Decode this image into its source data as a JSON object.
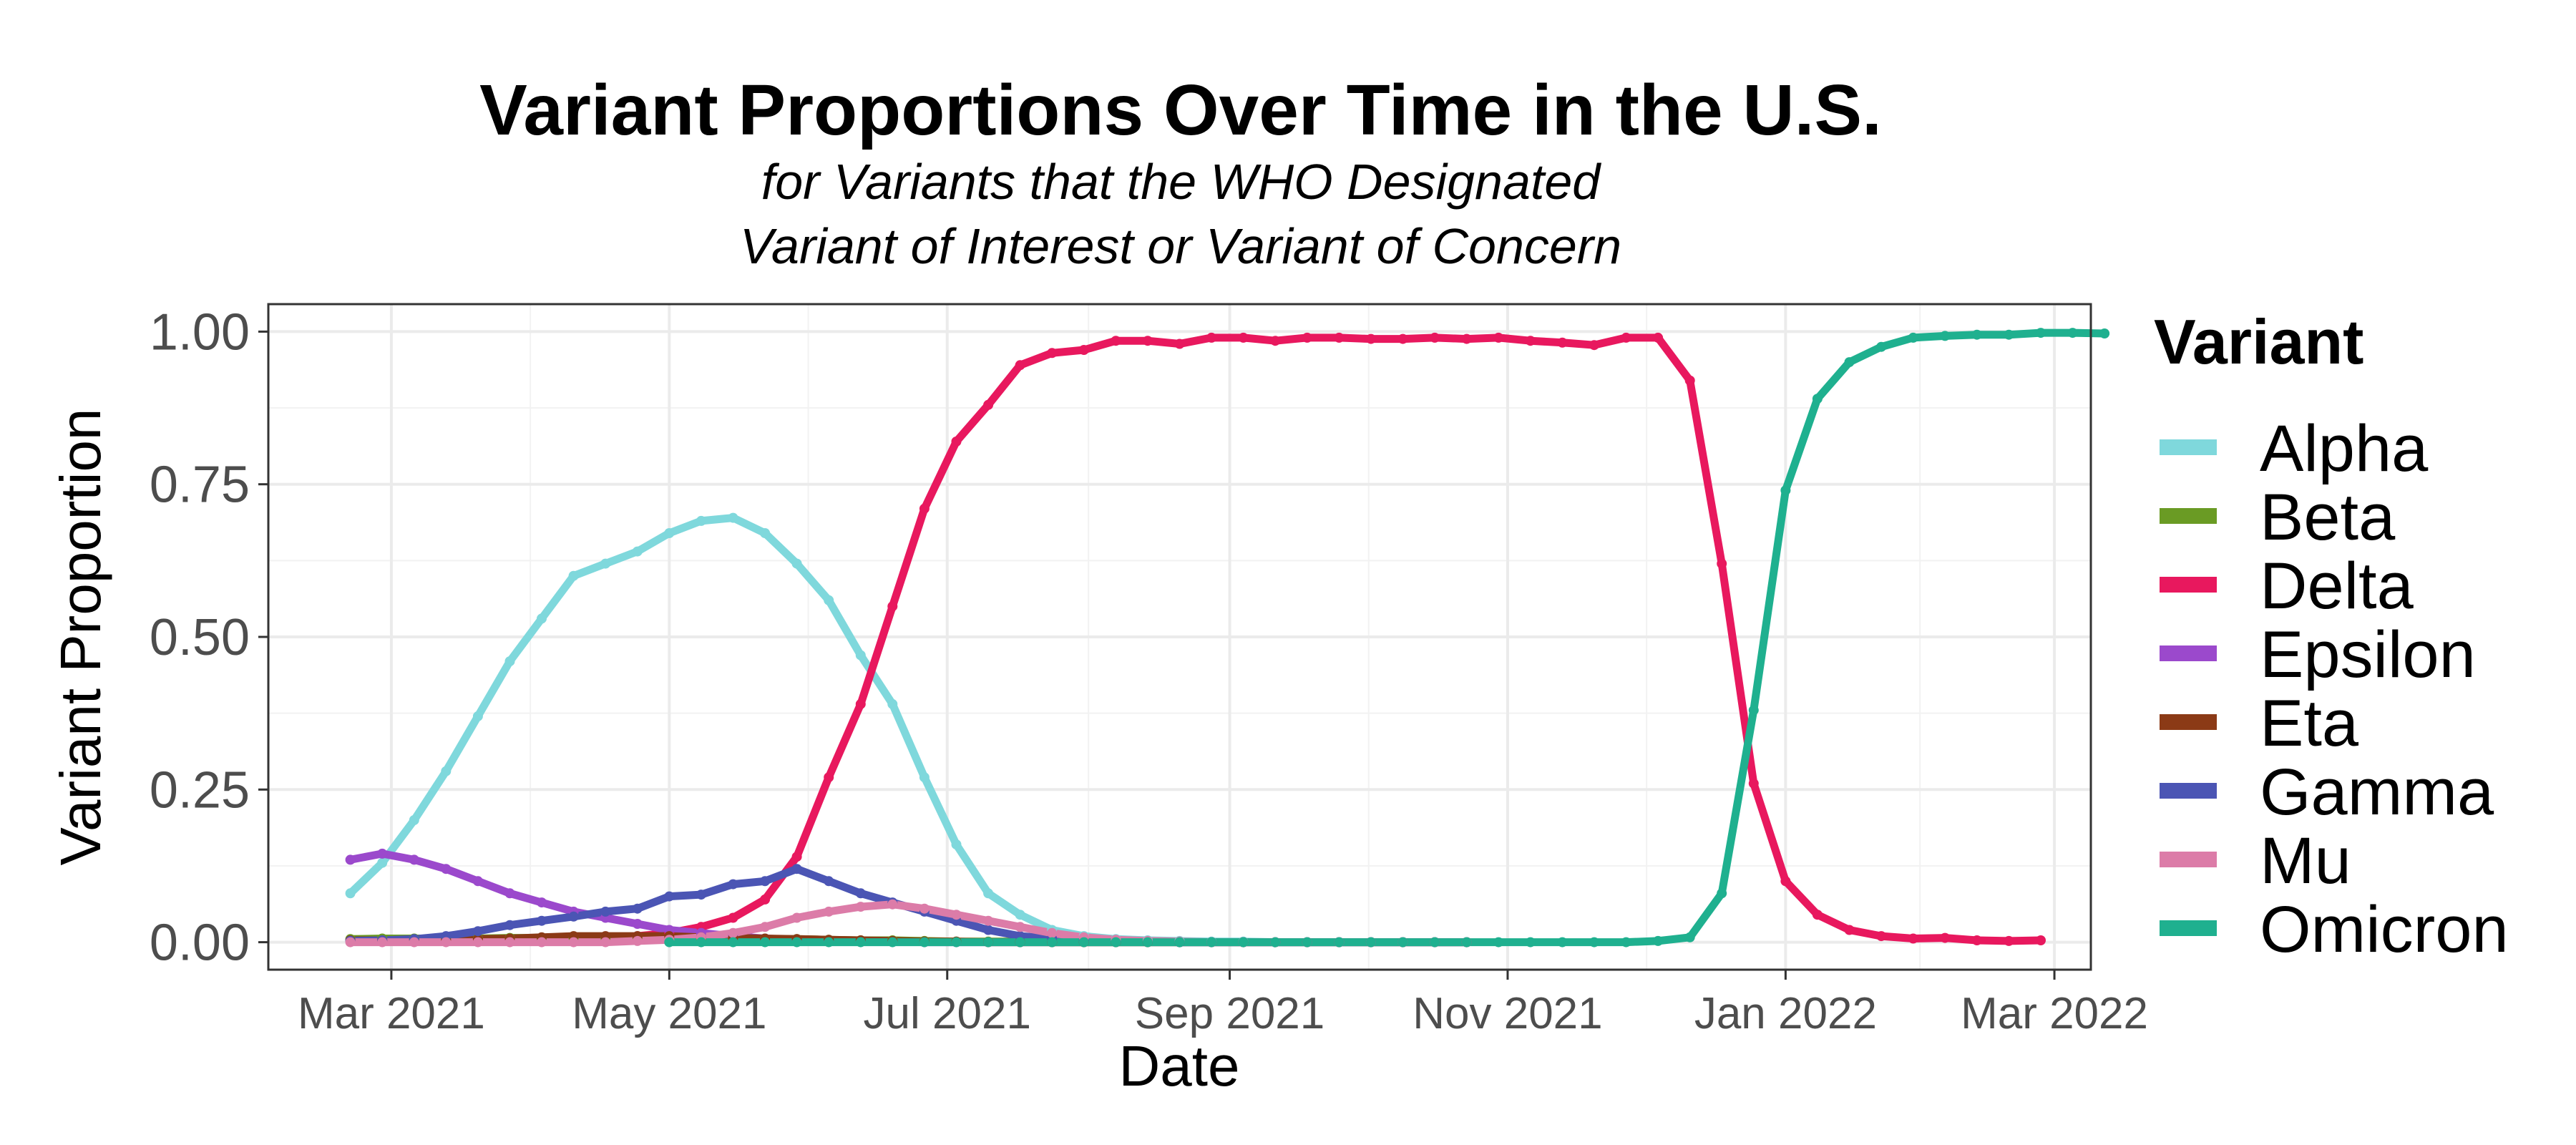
{
  "chart_data": {
    "type": "line",
    "title": "Variant Proportions Over Time in the U.S.",
    "subtitle": [
      "for Variants that the WHO Designated",
      "Variant of Interest or Variant of Concern"
    ],
    "xlabel": "Date",
    "ylabel": "Variant Proportion",
    "xlim": [
      "2021-02-02",
      "2022-03-09"
    ],
    "ylim": [
      -0.045,
      1.045
    ],
    "x_ticks": [
      {
        "date": "2021-03-01",
        "label": "Mar 2021"
      },
      {
        "date": "2021-05-01",
        "label": "May 2021"
      },
      {
        "date": "2021-07-01",
        "label": "Jul 2021"
      },
      {
        "date": "2021-09-01",
        "label": "Sep 2021"
      },
      {
        "date": "2021-11-01",
        "label": "Nov 2021"
      },
      {
        "date": "2022-01-01",
        "label": "Jan 2022"
      },
      {
        "date": "2022-03-01",
        "label": "Mar 2022"
      }
    ],
    "y_ticks": [
      {
        "value": 0,
        "label": "0.00"
      },
      {
        "value": 0.25,
        "label": "0.25"
      },
      {
        "value": 0.5,
        "label": "0.50"
      },
      {
        "value": 0.75,
        "label": "0.75"
      },
      {
        "value": 1,
        "label": "1.00"
      }
    ],
    "grid": true,
    "legend_title": "Variant",
    "legend_position": "right",
    "series": [
      {
        "name": "Alpha",
        "color": "#7fd8dc",
        "start": "2021-02-20",
        "interval_days": 7,
        "values": [
          0.08,
          0.13,
          0.2,
          0.28,
          0.37,
          0.46,
          0.53,
          0.6,
          0.62,
          0.64,
          0.67,
          0.69,
          0.695,
          0.67,
          0.62,
          0.56,
          0.47,
          0.39,
          0.27,
          0.16,
          0.08,
          0.045,
          0.02,
          0.01,
          0.005,
          0.003,
          0.002,
          0.001,
          0.001,
          0,
          0,
          0,
          0,
          0,
          0,
          0
        ]
      },
      {
        "name": "Beta",
        "color": "#6a9b24",
        "start": "2021-02-20",
        "interval_days": 7,
        "values": [
          0.005,
          0.006,
          0.006,
          0.006,
          0.006,
          0.007,
          0.007,
          0.007,
          0.007,
          0.007,
          0.007,
          0.006,
          0.006,
          0.005,
          0.005,
          0.004,
          0.003,
          0.003,
          0.002,
          0.001,
          0.001,
          0.001,
          0,
          0,
          0,
          0,
          0,
          0,
          0,
          0,
          0,
          0,
          0,
          0,
          0,
          0
        ]
      },
      {
        "name": "Delta",
        "color": "#e8185e",
        "start": "2021-04-24",
        "interval_days": 7,
        "values": [
          0.01,
          0.015,
          0.025,
          0.04,
          0.07,
          0.14,
          0.27,
          0.39,
          0.55,
          0.71,
          0.82,
          0.88,
          0.945,
          0.965,
          0.97,
          0.985,
          0.985,
          0.98,
          0.99,
          0.99,
          0.985,
          0.99,
          0.99,
          0.988,
          0.988,
          0.99,
          0.988,
          0.99,
          0.985,
          0.982,
          0.978,
          0.99,
          0.99,
          0.92,
          0.62,
          0.26,
          0.1,
          0.045,
          0.02,
          0.01,
          0.006,
          0.007,
          0.003,
          0.002,
          0.003
        ]
      },
      {
        "name": "Epsilon",
        "color": "#9b49cc",
        "start": "2021-02-20",
        "interval_days": 7,
        "values": [
          0.135,
          0.145,
          0.135,
          0.12,
          0.1,
          0.08,
          0.065,
          0.05,
          0.04,
          0.03,
          0.02,
          0.015,
          0.01,
          0.006,
          0.004,
          0.002,
          0.001,
          0.001,
          0,
          0,
          0,
          0,
          0,
          0,
          0,
          0,
          0,
          0,
          0,
          0,
          0,
          0,
          0,
          0,
          0,
          0
        ]
      },
      {
        "name": "Eta",
        "color": "#8b3a16",
        "start": "2021-02-20",
        "interval_days": 7,
        "values": [
          0.003,
          0.003,
          0.004,
          0.004,
          0.005,
          0.006,
          0.008,
          0.01,
          0.01,
          0.01,
          0.01,
          0.008,
          0.007,
          0.006,
          0.005,
          0.004,
          0.003,
          0.002,
          0.001,
          0.001,
          0,
          0,
          0,
          0,
          0,
          0,
          0,
          0,
          0,
          0,
          0,
          0,
          0,
          0,
          0,
          0
        ]
      },
      {
        "name": "Gamma",
        "color": "#4b55b4",
        "start": "2021-02-20",
        "interval_days": 7,
        "values": [
          0.002,
          0.003,
          0.005,
          0.01,
          0.018,
          0.028,
          0.035,
          0.042,
          0.05,
          0.055,
          0.075,
          0.078,
          0.095,
          0.1,
          0.12,
          0.1,
          0.08,
          0.065,
          0.05,
          0.035,
          0.02,
          0.01,
          0.006,
          0.003,
          0.002,
          0.001,
          0,
          0,
          0,
          0,
          0,
          0,
          0,
          0,
          0,
          0
        ]
      },
      {
        "name": "Mu",
        "color": "#dc7ca8",
        "start": "2021-02-20",
        "interval_days": 7,
        "values": [
          0,
          0,
          0,
          0,
          0,
          0,
          0,
          0,
          0,
          0.002,
          0.004,
          0.008,
          0.015,
          0.025,
          0.04,
          0.05,
          0.058,
          0.062,
          0.055,
          0.045,
          0.035,
          0.025,
          0.015,
          0.008,
          0.004,
          0.002,
          0.001,
          0,
          0,
          0,
          0,
          0,
          0,
          0,
          0,
          0
        ]
      },
      {
        "name": "Omicron",
        "color": "#1fb08f",
        "start": "2021-05-01",
        "interval_days": 7,
        "values": [
          0,
          0,
          0,
          0,
          0,
          0,
          0,
          0,
          0,
          0,
          0,
          0,
          0,
          0,
          0,
          0,
          0,
          0,
          0,
          0,
          0,
          0,
          0,
          0,
          0,
          0,
          0,
          0,
          0,
          0,
          0,
          0.002,
          0.008,
          0.08,
          0.38,
          0.74,
          0.89,
          0.95,
          0.975,
          0.99,
          0.993,
          0.995,
          0.995,
          0.998,
          0.998,
          0.997
        ]
      }
    ]
  }
}
